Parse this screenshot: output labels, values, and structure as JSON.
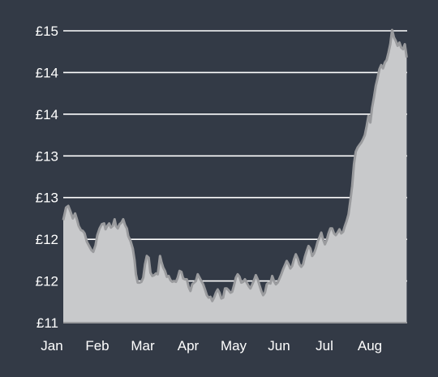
{
  "chart_data": {
    "type": "area",
    "title": "",
    "xlabel": "",
    "ylabel": "",
    "grid": true,
    "colors": {
      "background": "#333a46",
      "fill": "#c8c9cb",
      "line": "#9a9b9e",
      "grid": "#ffffff",
      "text": "#ffffff"
    },
    "y_ticks": [
      {
        "value": 11.0,
        "label": "£11"
      },
      {
        "value": 11.5,
        "label": "£12"
      },
      {
        "value": 12.0,
        "label": "£12"
      },
      {
        "value": 12.5,
        "label": "£13"
      },
      {
        "value": 13.0,
        "label": "£13"
      },
      {
        "value": 13.5,
        "label": "£14"
      },
      {
        "value": 14.0,
        "label": "£14"
      },
      {
        "value": 14.5,
        "label": "£15"
      }
    ],
    "ylim": [
      11.0,
      14.5
    ],
    "x_ticks": [
      {
        "value": 0,
        "label": "Jan"
      },
      {
        "value": 1,
        "label": "Feb"
      },
      {
        "value": 2,
        "label": "Mar"
      },
      {
        "value": 3,
        "label": "Apr"
      },
      {
        "value": 4,
        "label": "May"
      },
      {
        "value": 5,
        "label": "Jun"
      },
      {
        "value": 6,
        "label": "Jul"
      },
      {
        "value": 7,
        "label": "Aug"
      }
    ],
    "xlim": [
      0.25,
      7.81
    ],
    "series": [
      {
        "points": [
          [
            0.25,
            12.23
          ],
          [
            0.31,
            12.38
          ],
          [
            0.36,
            12.4
          ],
          [
            0.41,
            12.33
          ],
          [
            0.46,
            12.25
          ],
          [
            0.51,
            12.31
          ],
          [
            0.55,
            12.24
          ],
          [
            0.59,
            12.16
          ],
          [
            0.64,
            12.11
          ],
          [
            0.68,
            12.1
          ],
          [
            0.72,
            12.07
          ],
          [
            0.77,
            11.97
          ],
          [
            0.82,
            11.92
          ],
          [
            0.87,
            11.87
          ],
          [
            0.91,
            11.85
          ],
          [
            0.96,
            11.93
          ],
          [
            1.0,
            12.05
          ],
          [
            1.05,
            12.13
          ],
          [
            1.1,
            12.18
          ],
          [
            1.15,
            12.19
          ],
          [
            1.18,
            12.12
          ],
          [
            1.22,
            12.16
          ],
          [
            1.26,
            12.19
          ],
          [
            1.3,
            12.14
          ],
          [
            1.34,
            12.16
          ],
          [
            1.38,
            12.24
          ],
          [
            1.41,
            12.16
          ],
          [
            1.45,
            12.13
          ],
          [
            1.49,
            12.18
          ],
          [
            1.53,
            12.2
          ],
          [
            1.57,
            12.24
          ],
          [
            1.61,
            12.17
          ],
          [
            1.65,
            12.13
          ],
          [
            1.68,
            12.04
          ],
          [
            1.73,
            11.98
          ],
          [
            1.78,
            11.89
          ],
          [
            1.82,
            11.75
          ],
          [
            1.85,
            11.58
          ],
          [
            1.89,
            11.48
          ],
          [
            1.93,
            11.48
          ],
          [
            1.97,
            11.49
          ],
          [
            2.01,
            11.54
          ],
          [
            2.05,
            11.7
          ],
          [
            2.09,
            11.8
          ],
          [
            2.13,
            11.78
          ],
          [
            2.17,
            11.6
          ],
          [
            2.21,
            11.56
          ],
          [
            2.25,
            11.57
          ],
          [
            2.29,
            11.59
          ],
          [
            2.33,
            11.58
          ],
          [
            2.36,
            11.71
          ],
          [
            2.38,
            11.8
          ],
          [
            2.41,
            11.73
          ],
          [
            2.45,
            11.66
          ],
          [
            2.49,
            11.62
          ],
          [
            2.53,
            11.55
          ],
          [
            2.57,
            11.56
          ],
          [
            2.61,
            11.51
          ],
          [
            2.65,
            11.49
          ],
          [
            2.69,
            11.5
          ],
          [
            2.73,
            11.49
          ],
          [
            2.77,
            11.54
          ],
          [
            2.81,
            11.62
          ],
          [
            2.85,
            11.61
          ],
          [
            2.89,
            11.53
          ],
          [
            2.93,
            11.52
          ],
          [
            2.97,
            11.52
          ],
          [
            3.01,
            11.43
          ],
          [
            3.05,
            11.38
          ],
          [
            3.09,
            11.46
          ],
          [
            3.13,
            11.48
          ],
          [
            3.17,
            11.5
          ],
          [
            3.21,
            11.58
          ],
          [
            3.25,
            11.54
          ],
          [
            3.29,
            11.5
          ],
          [
            3.33,
            11.46
          ],
          [
            3.37,
            11.4
          ],
          [
            3.41,
            11.33
          ],
          [
            3.45,
            11.3
          ],
          [
            3.49,
            11.31
          ],
          [
            3.53,
            11.26
          ],
          [
            3.57,
            11.3
          ],
          [
            3.61,
            11.36
          ],
          [
            3.65,
            11.4
          ],
          [
            3.69,
            11.36
          ],
          [
            3.73,
            11.29
          ],
          [
            3.77,
            11.3
          ],
          [
            3.81,
            11.41
          ],
          [
            3.85,
            11.41
          ],
          [
            3.89,
            11.39
          ],
          [
            3.93,
            11.36
          ],
          [
            3.97,
            11.37
          ],
          [
            4.01,
            11.45
          ],
          [
            4.05,
            11.54
          ],
          [
            4.09,
            11.58
          ],
          [
            4.13,
            11.55
          ],
          [
            4.17,
            11.48
          ],
          [
            4.21,
            11.49
          ],
          [
            4.25,
            11.52
          ],
          [
            4.29,
            11.48
          ],
          [
            4.33,
            11.44
          ],
          [
            4.37,
            11.41
          ],
          [
            4.41,
            11.46
          ],
          [
            4.45,
            11.51
          ],
          [
            4.49,
            11.57
          ],
          [
            4.53,
            11.52
          ],
          [
            4.57,
            11.45
          ],
          [
            4.61,
            11.38
          ],
          [
            4.65,
            11.33
          ],
          [
            4.69,
            11.36
          ],
          [
            4.73,
            11.46
          ],
          [
            4.77,
            11.48
          ],
          [
            4.81,
            11.47
          ],
          [
            4.85,
            11.56
          ],
          [
            4.89,
            11.5
          ],
          [
            4.93,
            11.46
          ],
          [
            4.97,
            11.48
          ],
          [
            5.01,
            11.53
          ],
          [
            5.05,
            11.58
          ],
          [
            5.09,
            11.64
          ],
          [
            5.13,
            11.69
          ],
          [
            5.17,
            11.74
          ],
          [
            5.21,
            11.7
          ],
          [
            5.25,
            11.65
          ],
          [
            5.29,
            11.68
          ],
          [
            5.33,
            11.76
          ],
          [
            5.37,
            11.82
          ],
          [
            5.41,
            11.77
          ],
          [
            5.45,
            11.7
          ],
          [
            5.49,
            11.67
          ],
          [
            5.53,
            11.7
          ],
          [
            5.57,
            11.79
          ],
          [
            5.61,
            11.86
          ],
          [
            5.65,
            11.92
          ],
          [
            5.69,
            11.89
          ],
          [
            5.73,
            11.8
          ],
          [
            5.77,
            11.83
          ],
          [
            5.81,
            11.89
          ],
          [
            5.85,
            11.97
          ],
          [
            5.89,
            12.02
          ],
          [
            5.93,
            12.08
          ],
          [
            5.97,
            12.0
          ],
          [
            6.01,
            11.94
          ],
          [
            6.05,
            11.99
          ],
          [
            6.09,
            12.07
          ],
          [
            6.13,
            12.13
          ],
          [
            6.17,
            12.13
          ],
          [
            6.21,
            12.07
          ],
          [
            6.25,
            12.05
          ],
          [
            6.29,
            12.08
          ],
          [
            6.33,
            12.12
          ],
          [
            6.37,
            12.07
          ],
          [
            6.41,
            12.09
          ],
          [
            6.45,
            12.16
          ],
          [
            6.49,
            12.22
          ],
          [
            6.53,
            12.3
          ],
          [
            6.57,
            12.46
          ],
          [
            6.61,
            12.64
          ],
          [
            6.65,
            12.9
          ],
          [
            6.69,
            13.05
          ],
          [
            6.73,
            13.1
          ],
          [
            6.77,
            13.13
          ],
          [
            6.81,
            13.16
          ],
          [
            6.85,
            13.2
          ],
          [
            6.89,
            13.25
          ],
          [
            6.93,
            13.36
          ],
          [
            6.97,
            13.48
          ],
          [
            7.01,
            13.4
          ],
          [
            7.05,
            13.58
          ],
          [
            7.09,
            13.7
          ],
          [
            7.13,
            13.84
          ],
          [
            7.17,
            13.93
          ],
          [
            7.21,
            14.04
          ],
          [
            7.25,
            14.09
          ],
          [
            7.29,
            14.05
          ],
          [
            7.33,
            14.12
          ],
          [
            7.37,
            14.15
          ],
          [
            7.41,
            14.24
          ],
          [
            7.45,
            14.34
          ],
          [
            7.49,
            14.51
          ],
          [
            7.53,
            14.42
          ],
          [
            7.57,
            14.38
          ],
          [
            7.61,
            14.32
          ],
          [
            7.65,
            14.36
          ],
          [
            7.69,
            14.3
          ],
          [
            7.73,
            14.28
          ],
          [
            7.77,
            14.34
          ],
          [
            7.81,
            14.18
          ]
        ]
      }
    ]
  }
}
